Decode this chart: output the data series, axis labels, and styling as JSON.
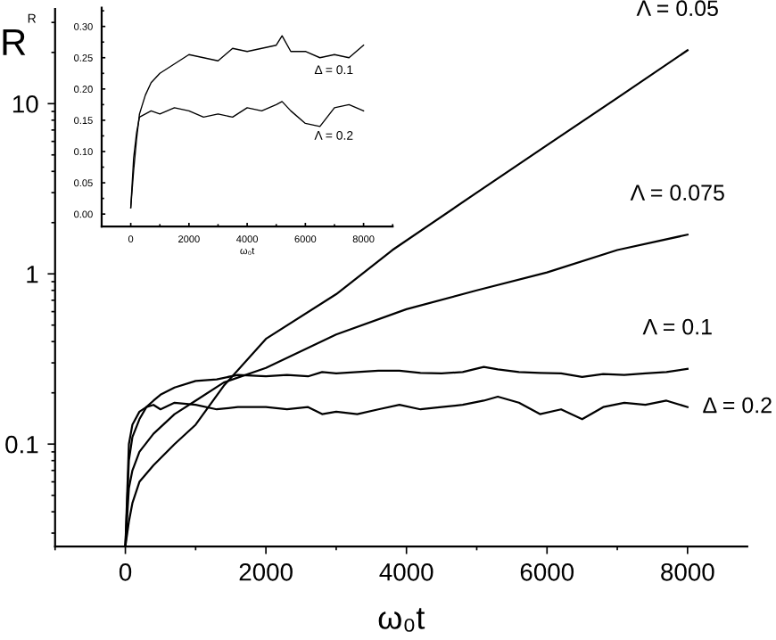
{
  "chart_data": [
    {
      "type": "line",
      "xlabel": "ω₀t",
      "ylabel": "R",
      "log": "y",
      "xlim": [
        -1000,
        8850
      ],
      "xticks": [
        0,
        2000,
        4000,
        6000,
        8000
      ],
      "ylim": [
        0.025,
        36
      ],
      "yticks": [
        0.1,
        1,
        10
      ],
      "grid": false,
      "legend": false,
      "series": [
        {
          "name": "Λ = 0.05",
          "color": "#000000",
          "x": [
            0,
            50,
            100,
            200,
            400,
            700,
            1000,
            1400,
            2000,
            3000,
            3800,
            5000,
            6000,
            7000,
            8000
          ],
          "values": [
            0.025,
            0.035,
            0.045,
            0.06,
            0.075,
            0.1,
            0.13,
            0.22,
            0.415,
            0.76,
            1.38,
            3.0,
            5.7,
            10.8,
            20.6
          ]
        },
        {
          "name": "Λ = 0.075",
          "color": "#000000",
          "x": [
            0,
            50,
            100,
            200,
            400,
            700,
            1000,
            1400,
            2000,
            3000,
            4000,
            5000,
            6000,
            7000,
            8000
          ],
          "values": [
            0.025,
            0.055,
            0.07,
            0.09,
            0.115,
            0.15,
            0.18,
            0.23,
            0.28,
            0.44,
            0.62,
            0.8,
            1.02,
            1.38,
            1.7
          ]
        },
        {
          "name": "Λ = 0.1",
          "color": "#000000",
          "x": [
            0,
            50,
            100,
            200,
            300,
            400,
            500,
            700,
            1000,
            1300,
            1600,
            2000,
            2300,
            2600,
            2800,
            3000,
            3300,
            3600,
            3900,
            4200,
            4500,
            4800,
            5100,
            5300,
            5600,
            5900,
            6200,
            6500,
            6800,
            7100,
            7400,
            7700,
            8000
          ],
          "values": [
            0.025,
            0.08,
            0.11,
            0.14,
            0.165,
            0.18,
            0.195,
            0.215,
            0.235,
            0.24,
            0.255,
            0.25,
            0.255,
            0.25,
            0.265,
            0.26,
            0.265,
            0.27,
            0.27,
            0.262,
            0.26,
            0.265,
            0.284,
            0.275,
            0.265,
            0.262,
            0.26,
            0.248,
            0.258,
            0.255,
            0.26,
            0.265,
            0.277
          ]
        },
        {
          "name": "Δ = 0.2",
          "color": "#000000",
          "x": [
            0,
            50,
            100,
            200,
            300,
            400,
            500,
            700,
            1000,
            1300,
            1600,
            2000,
            2300,
            2600,
            2800,
            3000,
            3300,
            3600,
            3900,
            4200,
            4500,
            4800,
            5100,
            5300,
            5600,
            5900,
            6200,
            6500,
            6800,
            7100,
            7400,
            7700,
            8000
          ],
          "values": [
            0.025,
            0.1,
            0.13,
            0.155,
            0.165,
            0.17,
            0.16,
            0.175,
            0.17,
            0.16,
            0.165,
            0.165,
            0.16,
            0.165,
            0.15,
            0.155,
            0.15,
            0.16,
            0.17,
            0.16,
            0.165,
            0.17,
            0.18,
            0.19,
            0.175,
            0.15,
            0.16,
            0.14,
            0.165,
            0.175,
            0.17,
            0.18,
            0.165
          ]
        }
      ]
    },
    {
      "type": "line",
      "xlabel": "ω₀t",
      "ylabel": "R",
      "xlim": [
        -1000,
        9000
      ],
      "xticks": [
        0,
        2000,
        4000,
        6000,
        8000
      ],
      "ylim": [
        -0.02,
        0.33
      ],
      "yticks": [
        {
          "value": 0,
          "label": "0.00"
        },
        {
          "value": 0.05,
          "label": "0.05"
        },
        {
          "value": 0.1,
          "label": "0.10"
        },
        {
          "value": 0.15,
          "label": "0.15"
        },
        {
          "value": 0.2,
          "label": "0.20"
        },
        {
          "value": 0.25,
          "label": "0.25"
        },
        {
          "value": 0.3,
          "label": "0.30"
        }
      ],
      "grid": false,
      "legend": false,
      "series": [
        {
          "name": "Δ = 0.1",
          "color": "#000000",
          "x": [
            0,
            100,
            200,
            300,
            500,
            700,
            1000,
            1500,
            2000,
            2500,
            3000,
            3500,
            4000,
            4500,
            5000,
            5200,
            5500,
            6000,
            6500,
            7000,
            7500,
            8000
          ],
          "values": [
            0.01,
            0.07,
            0.12,
            0.16,
            0.19,
            0.21,
            0.225,
            0.24,
            0.255,
            0.25,
            0.245,
            0.265,
            0.26,
            0.265,
            0.27,
            0.285,
            0.26,
            0.26,
            0.25,
            0.255,
            0.25,
            0.27
          ]
        },
        {
          "name": "Λ = 0.2",
          "color": "#000000",
          "x": [
            0,
            100,
            200,
            300,
            500,
            700,
            1000,
            1500,
            2000,
            2500,
            3000,
            3500,
            4000,
            4500,
            5000,
            5200,
            5500,
            6000,
            6500,
            7000,
            7500,
            8000
          ],
          "values": [
            0.01,
            0.09,
            0.13,
            0.155,
            0.16,
            0.165,
            0.16,
            0.17,
            0.165,
            0.155,
            0.16,
            0.155,
            0.17,
            0.165,
            0.175,
            0.18,
            0.165,
            0.145,
            0.14,
            0.17,
            0.175,
            0.165
          ]
        }
      ]
    }
  ]
}
